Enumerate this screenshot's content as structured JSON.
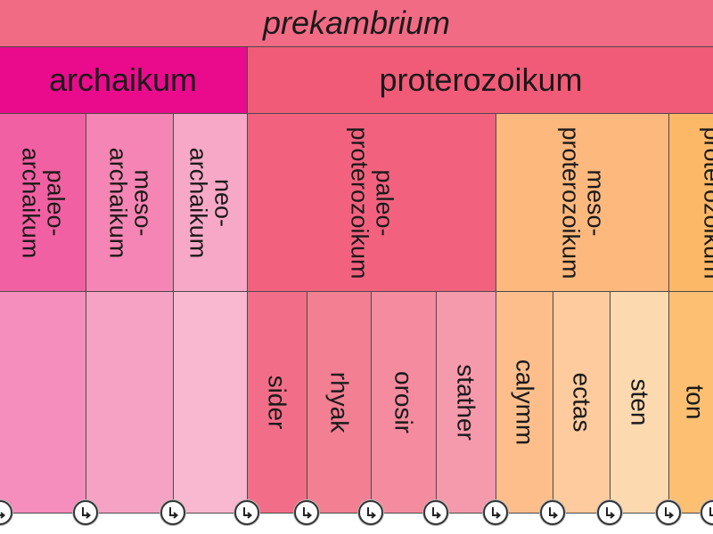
{
  "eon": {
    "label": "prekambrium",
    "color": "#f26b85"
  },
  "eras": [
    {
      "label": "archaikum",
      "color": "#ea0a8c"
    },
    {
      "label": "proterozoikum",
      "color": "#f15b78"
    }
  ],
  "subeons": [
    {
      "label": "paleo-\narchaikum",
      "color": "#f160a2"
    },
    {
      "label": "meso-\narchaikum",
      "color": "#f485b4"
    },
    {
      "label": "neo-\narchaikum",
      "color": "#f7a8c7"
    },
    {
      "label": "paleo-\nproterozoikum",
      "color": "#f2627f"
    },
    {
      "label": "meso-\nproterozoikum",
      "color": "#fcb87d"
    },
    {
      "label": "neo-\nproterozoikum",
      "color": "#fdb867"
    }
  ],
  "periods": [
    {
      "label": "",
      "color": "#f58dbd"
    },
    {
      "label": "",
      "color": "#f6a2c4"
    },
    {
      "label": "",
      "color": "#f9b8cf"
    },
    {
      "label": "sider",
      "color": "#f26e88"
    },
    {
      "label": "rhyak",
      "color": "#f27f92"
    },
    {
      "label": "orosir",
      "color": "#f48b9e"
    },
    {
      "label": "stather",
      "color": "#f59aac"
    },
    {
      "label": "calymm",
      "color": "#fdbe8c"
    },
    {
      "label": "ectas",
      "color": "#fdcb9e"
    },
    {
      "label": "sten",
      "color": "#fdd9b0"
    },
    {
      "label": "ton",
      "color": "#fdbf72"
    }
  ],
  "marker_icon": "clock-arrow-icon",
  "marker_count": 13
}
